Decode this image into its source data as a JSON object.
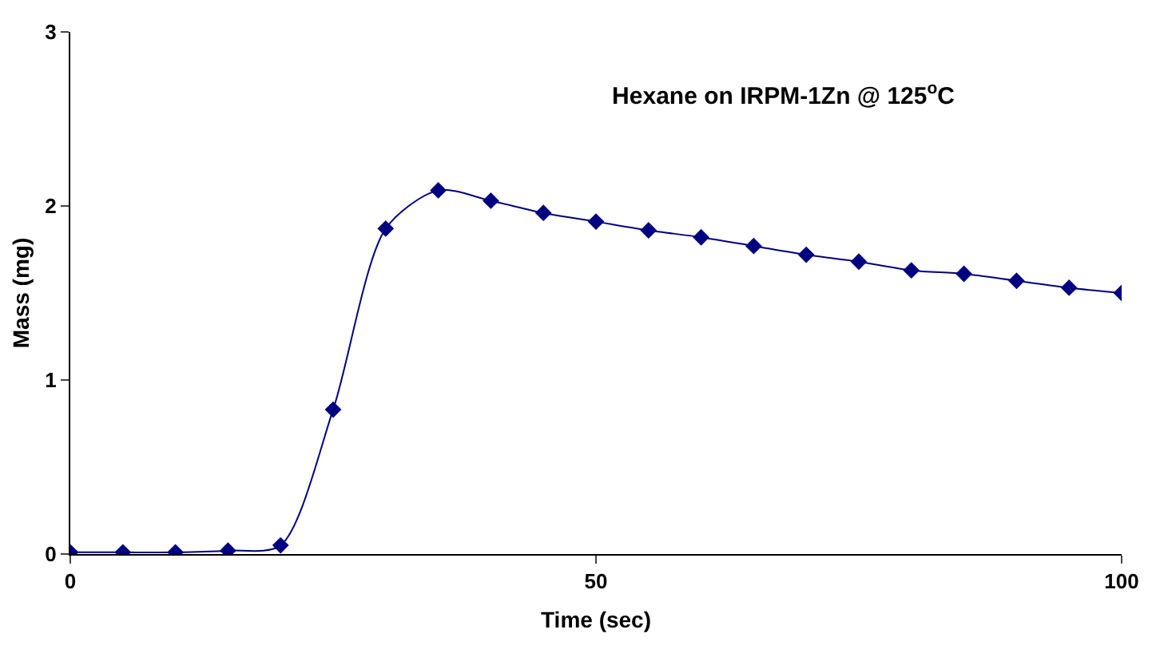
{
  "chart_data": {
    "type": "line",
    "title": "Hexane on IRPM-1Zn @ 125$^{o}$C",
    "xlabel": "Time (sec)",
    "ylabel": "Mass (mg)",
    "x": [
      0,
      5,
      10,
      15,
      20,
      25,
      30,
      35,
      40,
      45,
      50,
      55,
      60,
      65,
      70,
      75,
      80,
      85,
      90,
      95,
      100
    ],
    "series": [
      {
        "color": "#000080",
        "values": [
          0.01,
          0.01,
          0.01,
          0.02,
          0.05,
          0.83,
          1.87,
          2.09,
          2.03,
          1.96,
          1.91,
          1.86,
          1.82,
          1.77,
          1.72,
          1.68,
          1.63,
          1.61,
          1.57,
          1.53,
          1.5
        ]
      }
    ],
    "xlim": [
      0,
      100
    ],
    "xticks": [
      0,
      50,
      100
    ],
    "ylim": [
      0,
      3
    ],
    "yticks": [
      0,
      1,
      2,
      3
    ],
    "grid": false,
    "legend": false,
    "marker": "diamond",
    "line_style": "solid"
  }
}
